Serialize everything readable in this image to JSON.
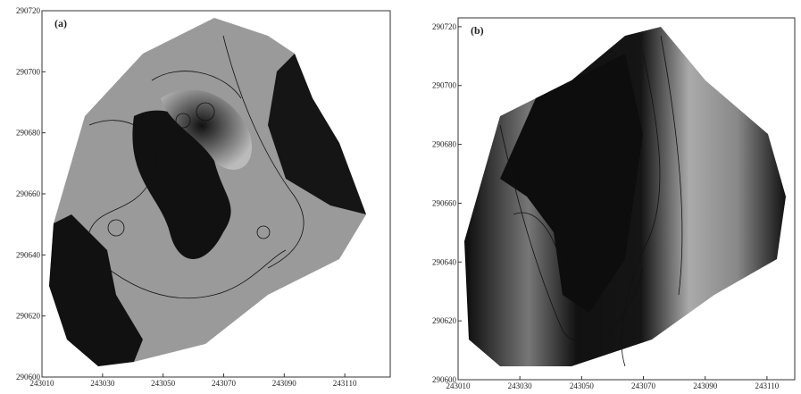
{
  "chart_data": [
    {
      "type": "map",
      "title": "(a)",
      "xlim": [
        243010,
        243125
      ],
      "xticks": [
        243010,
        243030,
        243050,
        243070,
        243090,
        243110
      ],
      "ylim": [
        290600,
        290720
      ],
      "yticks": [
        290600,
        290620,
        290640,
        290660,
        290680,
        290700,
        290720
      ]
    },
    {
      "type": "map",
      "title": "(b)",
      "xlim": [
        243010,
        243119
      ],
      "xticks": [
        243010,
        243030,
        243050,
        243070,
        243090,
        243110
      ],
      "ylim": [
        290600,
        290723
      ],
      "yticks": [
        290600,
        290620,
        290640,
        290660,
        290680,
        290700,
        290720
      ]
    }
  ]
}
